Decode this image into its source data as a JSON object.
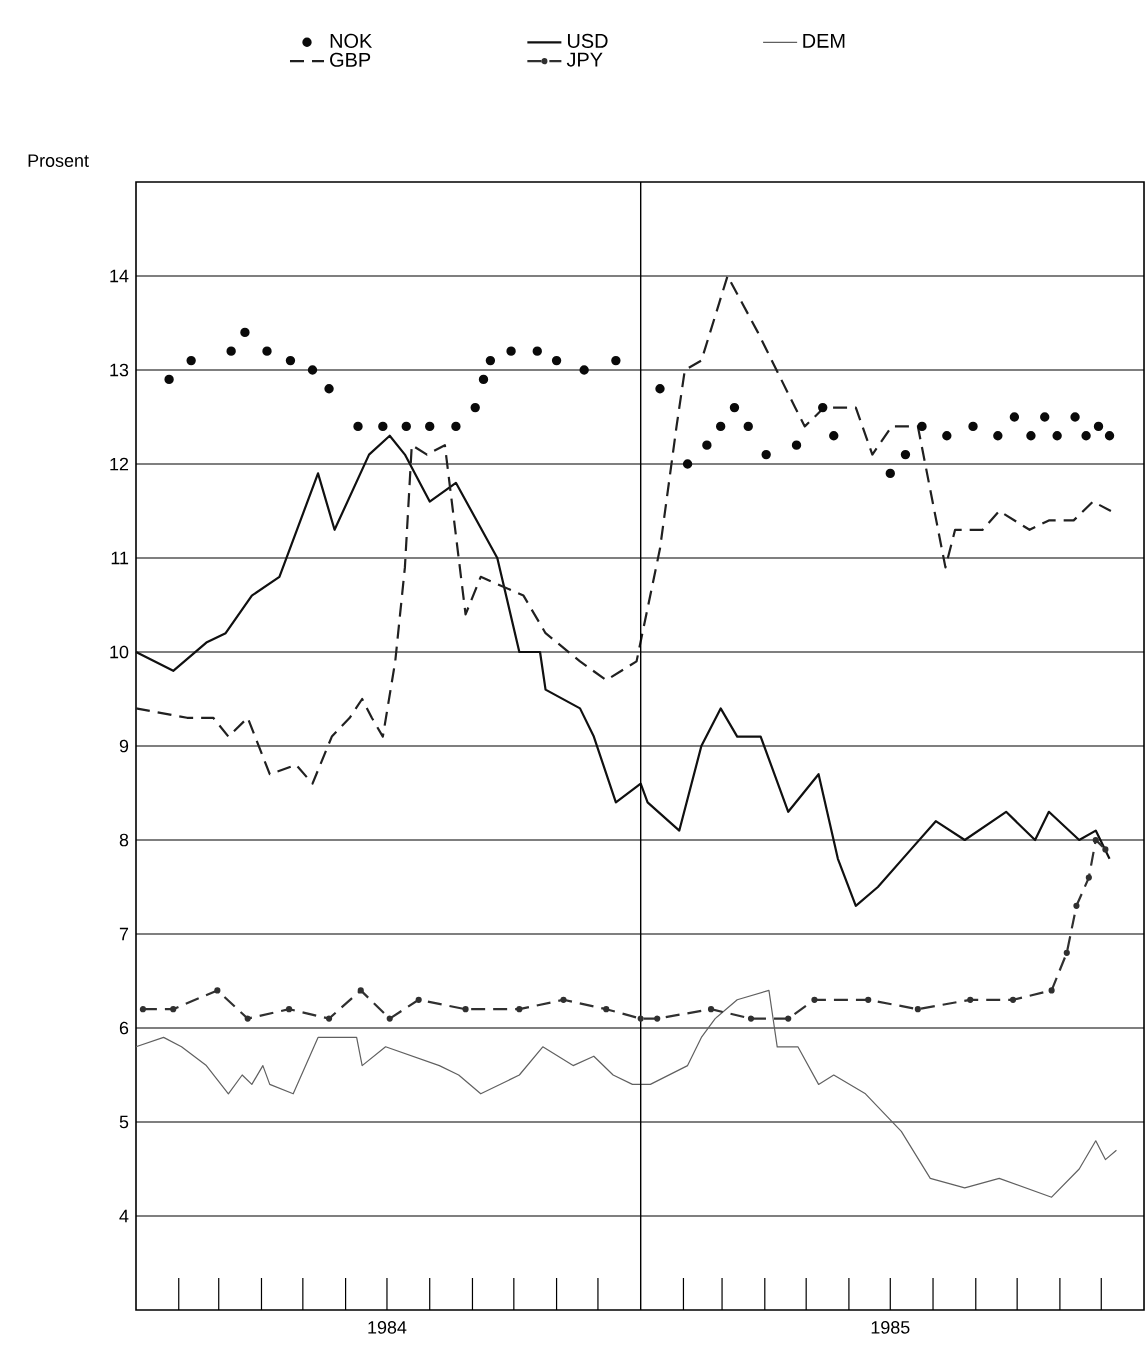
{
  "chart_data": {
    "type": "line",
    "ylabel": "Prosent",
    "xlim": [
      "1984-01-01",
      "1986-01-01"
    ],
    "ylim": [
      3,
      15
    ],
    "xticks": [
      {
        "value": "1984-02-01",
        "label": null
      },
      {
        "value": "1984-03-01",
        "label": null
      },
      {
        "value": "1984-04-01",
        "label": null
      },
      {
        "value": "1984-05-01",
        "label": null
      },
      {
        "value": "1984-06-01",
        "label": null
      },
      {
        "value": "1984-07-01",
        "label": "1984"
      },
      {
        "value": "1984-08-01",
        "label": null
      },
      {
        "value": "1984-09-01",
        "label": null
      },
      {
        "value": "1984-10-01",
        "label": null
      },
      {
        "value": "1984-11-01",
        "label": null
      },
      {
        "value": "1984-12-01",
        "label": null
      },
      {
        "value": "1985-02-01",
        "label": null
      },
      {
        "value": "1985-03-01",
        "label": null
      },
      {
        "value": "1985-04-01",
        "label": null
      },
      {
        "value": "1985-05-01",
        "label": null
      },
      {
        "value": "1985-06-01",
        "label": null
      },
      {
        "value": "1985-07-01",
        "label": "1985"
      },
      {
        "value": "1985-08-01",
        "label": null
      },
      {
        "value": "1985-09-01",
        "label": null
      },
      {
        "value": "1985-10-01",
        "label": null
      },
      {
        "value": "1985-11-01",
        "label": null
      },
      {
        "value": "1985-12-01",
        "label": null
      }
    ],
    "yticks": [
      4,
      5,
      6,
      7,
      8,
      9,
      10,
      11,
      12,
      13,
      14
    ],
    "grid": "y",
    "legend": "top",
    "ref_lines": [
      {
        "axis": "x",
        "value": "1985-01-01",
        "color": "#000000"
      }
    ],
    "series": [
      {
        "name": "NOK",
        "type": "scatter",
        "color": "#0a0a0a",
        "marker": "circle",
        "x": [
          "1984-01-25",
          "1984-02-10",
          "1984-03-10",
          "1984-03-20",
          "1984-04-05",
          "1984-04-22",
          "1984-05-08",
          "1984-05-20",
          "1984-06-10",
          "1984-06-28",
          "1984-07-15",
          "1984-08-01",
          "1984-08-20",
          "1984-09-03",
          "1984-09-09",
          "1984-09-14",
          "1984-09-29",
          "1984-10-18",
          "1984-11-01",
          "1984-11-21",
          "1984-12-14",
          "1985-01-15",
          "1985-02-04",
          "1985-02-18",
          "1985-02-28",
          "1985-03-10",
          "1985-03-20",
          "1985-04-02",
          "1985-04-24",
          "1985-05-13",
          "1985-05-21",
          "1985-07-01",
          "1985-07-12",
          "1985-07-24",
          "1985-08-11",
          "1985-08-30",
          "1985-09-17",
          "1985-09-29",
          "1985-10-11",
          "1985-10-21",
          "1985-10-30",
          "1985-11-12",
          "1985-11-20",
          "1985-11-29",
          "1985-12-07"
        ],
        "values": [
          12.9,
          13.1,
          13.2,
          13.4,
          13.2,
          13.1,
          13.0,
          12.8,
          12.4,
          12.4,
          12.4,
          12.4,
          12.4,
          12.6,
          12.9,
          13.1,
          13.2,
          13.2,
          13.1,
          13.0,
          13.1,
          12.8,
          12.0,
          12.2,
          12.4,
          12.6,
          12.4,
          12.1,
          12.2,
          12.6,
          12.3,
          11.9,
          12.1,
          12.4,
          12.3,
          12.4,
          12.3,
          12.5,
          12.3,
          12.5,
          12.3,
          12.5,
          12.3,
          12.4,
          12.3
        ]
      },
      {
        "name": "USD",
        "color": "#101010",
        "line_style": "solid",
        "marker": "none",
        "x": [
          "1984-01-01",
          "1984-01-28",
          "1984-02-21",
          "1984-03-06",
          "1984-03-25",
          "1984-04-14",
          "1984-05-12",
          "1984-05-24",
          "1984-06-18",
          "1984-07-03",
          "1984-07-14",
          "1984-08-01",
          "1984-08-20",
          "1984-09-19",
          "1984-10-05",
          "1984-10-20",
          "1984-10-24",
          "1984-11-18",
          "1984-11-28",
          "1984-12-14",
          "1985-01-01",
          "1985-01-06",
          "1985-01-29",
          "1985-02-14",
          "1985-02-28",
          "1985-03-12",
          "1985-03-29",
          "1985-04-18",
          "1985-05-10",
          "1985-05-24",
          "1985-06-06",
          "1985-06-22",
          "1985-07-16",
          "1985-08-03",
          "1985-08-24",
          "1985-09-23",
          "1985-10-14",
          "1985-10-24",
          "1985-11-15",
          "1985-11-27",
          "1985-12-07"
        ],
        "values": [
          10.0,
          9.8,
          10.1,
          10.2,
          10.6,
          10.8,
          11.9,
          11.3,
          12.1,
          12.3,
          12.1,
          11.6,
          11.8,
          11.0,
          10.0,
          10.0,
          9.6,
          9.4,
          9.1,
          8.4,
          8.6,
          8.4,
          8.1,
          9.0,
          9.4,
          9.1,
          9.1,
          8.3,
          8.7,
          7.8,
          7.3,
          7.5,
          7.9,
          8.2,
          8.0,
          8.3,
          8.0,
          8.3,
          8.0,
          8.1,
          7.8
        ]
      },
      {
        "name": "DEM",
        "color": "#606060",
        "line_style": "solid",
        "marker": "none",
        "x": [
          "1984-01-01",
          "1984-01-21",
          "1984-02-03",
          "1984-02-21",
          "1984-03-08",
          "1984-03-18",
          "1984-03-25",
          "1984-04-02",
          "1984-04-07",
          "1984-04-24",
          "1984-05-12",
          "1984-06-09",
          "1984-06-13",
          "1984-06-30",
          "1984-08-08",
          "1984-08-22",
          "1984-09-07",
          "1984-10-05",
          "1984-10-22",
          "1984-11-13",
          "1984-11-28",
          "1984-12-12",
          "1984-12-26",
          "1985-01-08",
          "1985-02-04",
          "1985-02-14",
          "1985-02-24",
          "1985-03-12",
          "1985-04-04",
          "1985-04-10",
          "1985-04-25",
          "1985-05-10",
          "1985-05-21",
          "1985-06-13",
          "1985-07-09",
          "1985-07-30",
          "1985-08-24",
          "1985-09-18",
          "1985-10-26",
          "1985-11-15",
          "1985-11-27",
          "1985-12-04",
          "1985-12-12"
        ],
        "values": [
          5.8,
          5.9,
          5.8,
          5.6,
          5.3,
          5.5,
          5.4,
          5.6,
          5.4,
          5.3,
          5.9,
          5.9,
          5.6,
          5.8,
          5.6,
          5.5,
          5.3,
          5.5,
          5.8,
          5.6,
          5.7,
          5.5,
          5.4,
          5.4,
          5.6,
          5.9,
          6.1,
          6.3,
          6.4,
          5.8,
          5.8,
          5.4,
          5.5,
          5.3,
          4.9,
          4.4,
          4.3,
          4.4,
          4.2,
          4.5,
          4.8,
          4.6,
          4.7
        ]
      },
      {
        "name": "GBP",
        "color": "#202020",
        "line_style": "dashed",
        "marker": "none",
        "x": [
          "1984-01-01",
          "1984-02-07",
          "1984-02-26",
          "1984-03-08",
          "1984-03-22",
          "1984-04-07",
          "1984-04-26",
          "1984-05-08",
          "1984-05-22",
          "1984-06-04",
          "1984-06-13",
          "1984-06-20",
          "1984-06-28",
          "1984-07-07",
          "1984-07-14",
          "1984-07-19",
          "1984-07-30",
          "1984-08-12",
          "1984-08-22",
          "1984-08-27",
          "1984-09-07",
          "1984-10-08",
          "1984-10-24",
          "1984-11-18",
          "1984-12-07",
          "1984-12-29",
          "1985-01-15",
          "1985-01-27",
          "1985-02-02",
          "1985-02-14",
          "1985-03-05",
          "1985-03-27",
          "1985-04-23",
          "1985-04-30",
          "1985-05-14",
          "1985-06-06",
          "1985-06-18",
          "1985-07-02",
          "1985-07-21",
          "1985-08-10",
          "1985-08-17",
          "1985-09-06",
          "1985-09-18",
          "1985-10-10",
          "1985-10-24",
          "1985-11-11",
          "1985-11-25",
          "1985-12-08"
        ],
        "values": [
          9.4,
          9.3,
          9.3,
          9.1,
          9.3,
          8.7,
          8.8,
          8.6,
          9.1,
          9.3,
          9.5,
          9.3,
          9.1,
          9.9,
          10.9,
          12.2,
          12.1,
          12.2,
          11.0,
          10.4,
          10.8,
          10.6,
          10.2,
          9.9,
          9.7,
          9.9,
          11.1,
          12.4,
          13.0,
          13.1,
          14.0,
          13.4,
          12.6,
          12.4,
          12.6,
          12.6,
          12.1,
          12.4,
          12.4,
          10.9,
          11.3,
          11.3,
          11.5,
          11.3,
          11.4,
          11.4,
          11.6,
          11.5
        ]
      },
      {
        "name": "JPY",
        "color": "#303030",
        "line_style": "dashed",
        "marker": "circle",
        "x": [
          "1984-01-06",
          "1984-01-28",
          "1984-02-29",
          "1984-03-22",
          "1984-04-21",
          "1984-05-20",
          "1984-06-12",
          "1984-07-03",
          "1984-07-24",
          "1984-08-27",
          "1984-10-05",
          "1984-11-06",
          "1984-12-07",
          "1985-01-01",
          "1985-01-13",
          "1985-02-21",
          "1985-03-22",
          "1985-04-18",
          "1985-05-07",
          "1985-06-15",
          "1985-07-21",
          "1985-08-28",
          "1985-09-28",
          "1985-10-26",
          "1985-11-06",
          "1985-11-13",
          "1985-11-22",
          "1985-11-27",
          "1985-12-04"
        ],
        "values": [
          6.2,
          6.2,
          6.4,
          6.1,
          6.2,
          6.1,
          6.4,
          6.1,
          6.3,
          6.2,
          6.2,
          6.3,
          6.2,
          6.1,
          6.1,
          6.2,
          6.1,
          6.1,
          6.3,
          6.3,
          6.2,
          6.3,
          6.3,
          6.4,
          6.8,
          7.3,
          7.6,
          8.0,
          7.9
        ]
      }
    ]
  }
}
